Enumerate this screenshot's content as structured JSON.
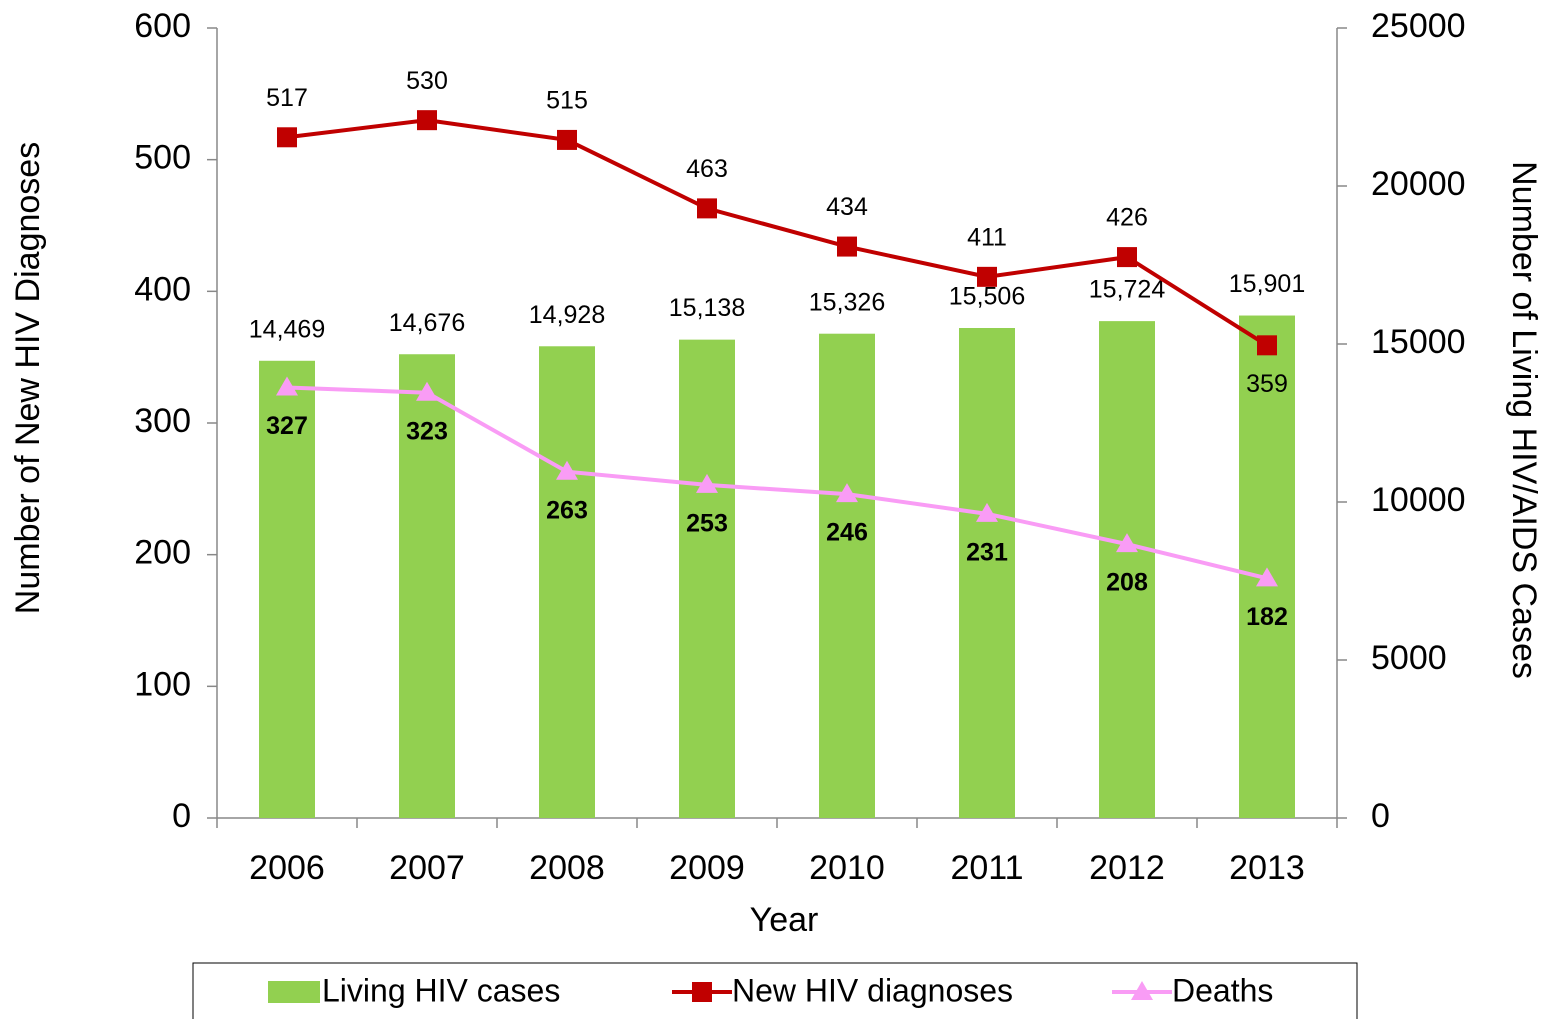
{
  "chart_data": {
    "type": "combo",
    "x_label": "Year",
    "y_label": "Number of New HIV Diagnoses",
    "y2_label": "Number of Living HIV/AIDS Cases",
    "categories": [
      "2006",
      "2007",
      "2008",
      "2009",
      "2010",
      "2011",
      "2012",
      "2013"
    ],
    "series": [
      {
        "name": "Living HIV cases",
        "type": "bar",
        "axis": "y2",
        "color": "#92d050",
        "values": [
          14469,
          14676,
          14928,
          15138,
          15326,
          15506,
          15724,
          15901
        ],
        "value_labels": [
          "14,469",
          "14,676",
          "14,928",
          "15,138",
          "15,326",
          "15,506",
          "15,724",
          "15,901"
        ]
      },
      {
        "name": "New HIV diagnoses",
        "type": "line",
        "marker": "square",
        "color": "#c00000",
        "values": [
          517,
          530,
          515,
          463,
          434,
          411,
          426,
          359
        ]
      },
      {
        "name": "Deaths",
        "type": "line",
        "marker": "triangle",
        "color": "#f99cf5",
        "bold_labels": true,
        "values": [
          327,
          323,
          263,
          253,
          246,
          231,
          208,
          182
        ]
      }
    ],
    "ylim": [
      0,
      600
    ],
    "yticks": [
      0,
      100,
      200,
      300,
      400,
      500,
      600
    ],
    "y2lim": [
      0,
      25000
    ],
    "y2ticks": [
      0,
      5000,
      10000,
      15000,
      20000,
      25000
    ],
    "grid": false,
    "legend": "bottom"
  }
}
